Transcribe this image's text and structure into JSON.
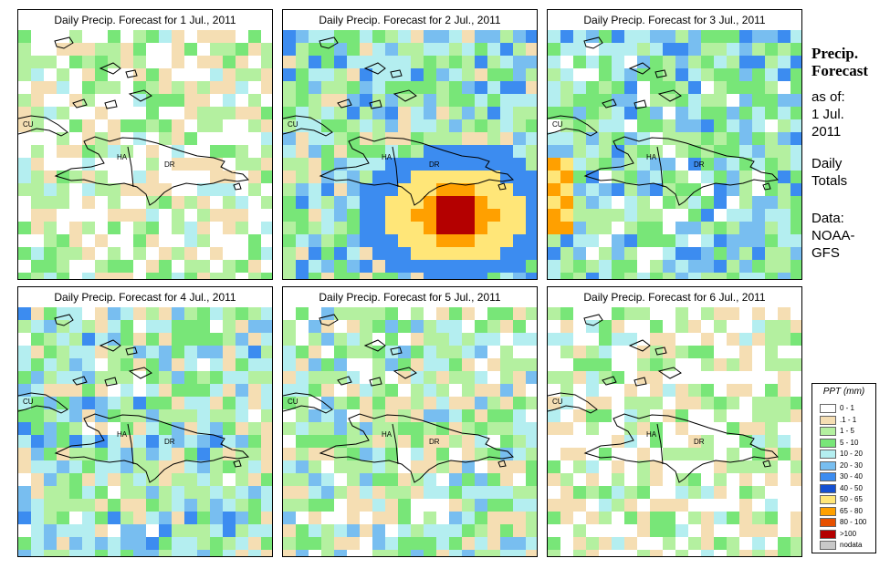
{
  "panels": [
    {
      "title": "Daily Precip. Forecast for  1 Jul., 2011",
      "seed": 11,
      "profile": "dry"
    },
    {
      "title": "Daily Precip. Forecast for  2 Jul., 2011",
      "seed": 23,
      "profile": "storm"
    },
    {
      "title": "Daily Precip. Forecast for  3 Jul., 2011",
      "seed": 37,
      "profile": "west"
    },
    {
      "title": "Daily Precip. Forecast for  4 Jul., 2011",
      "seed": 41,
      "profile": "mixed"
    },
    {
      "title": "Daily Precip. Forecast for  5 Jul., 2011",
      "seed": 53,
      "profile": "moderate"
    },
    {
      "title": "Daily Precip. Forecast for  6 Jul., 2011",
      "seed": 67,
      "profile": "dry"
    }
  ],
  "map_labels": {
    "cuba": "CU",
    "haiti": "HA",
    "dominican_republic": "DR"
  },
  "sidebar": {
    "title_line1": "Precip.",
    "title_line2": "Forecast",
    "asof_label": "as of:",
    "date_line1": "1 Jul.",
    "date_line2": "2011",
    "totals_line1": "Daily",
    "totals_line2": "Totals",
    "data_label": "Data:",
    "source_line1": "NOAA-",
    "source_line2": "GFS"
  },
  "legend": {
    "title": "PPT (mm)",
    "items": [
      {
        "label": "0 - 1",
        "color": "#ffffff"
      },
      {
        "label": ".1 - 1",
        "color": "#f5deb3"
      },
      {
        "label": "1 - 5",
        "color": "#b4f0a0"
      },
      {
        "label": "5 - 10",
        "color": "#78e678"
      },
      {
        "label": "10 - 20",
        "color": "#b4eef0"
      },
      {
        "label": "20 - 30",
        "color": "#78bef0"
      },
      {
        "label": "30 - 40",
        "color": "#3c8cf0"
      },
      {
        "label": "40 - 50",
        "color": "#1450d2"
      },
      {
        "label": "50 - 65",
        "color": "#ffe678"
      },
      {
        "label": "65 - 80",
        "color": "#ffa000"
      },
      {
        "label": "80 - 100",
        "color": "#e65000"
      },
      {
        "label": ">100",
        "color": "#b40000"
      },
      {
        "label": "nodata",
        "color": "#c8c8c8"
      }
    ]
  }
}
